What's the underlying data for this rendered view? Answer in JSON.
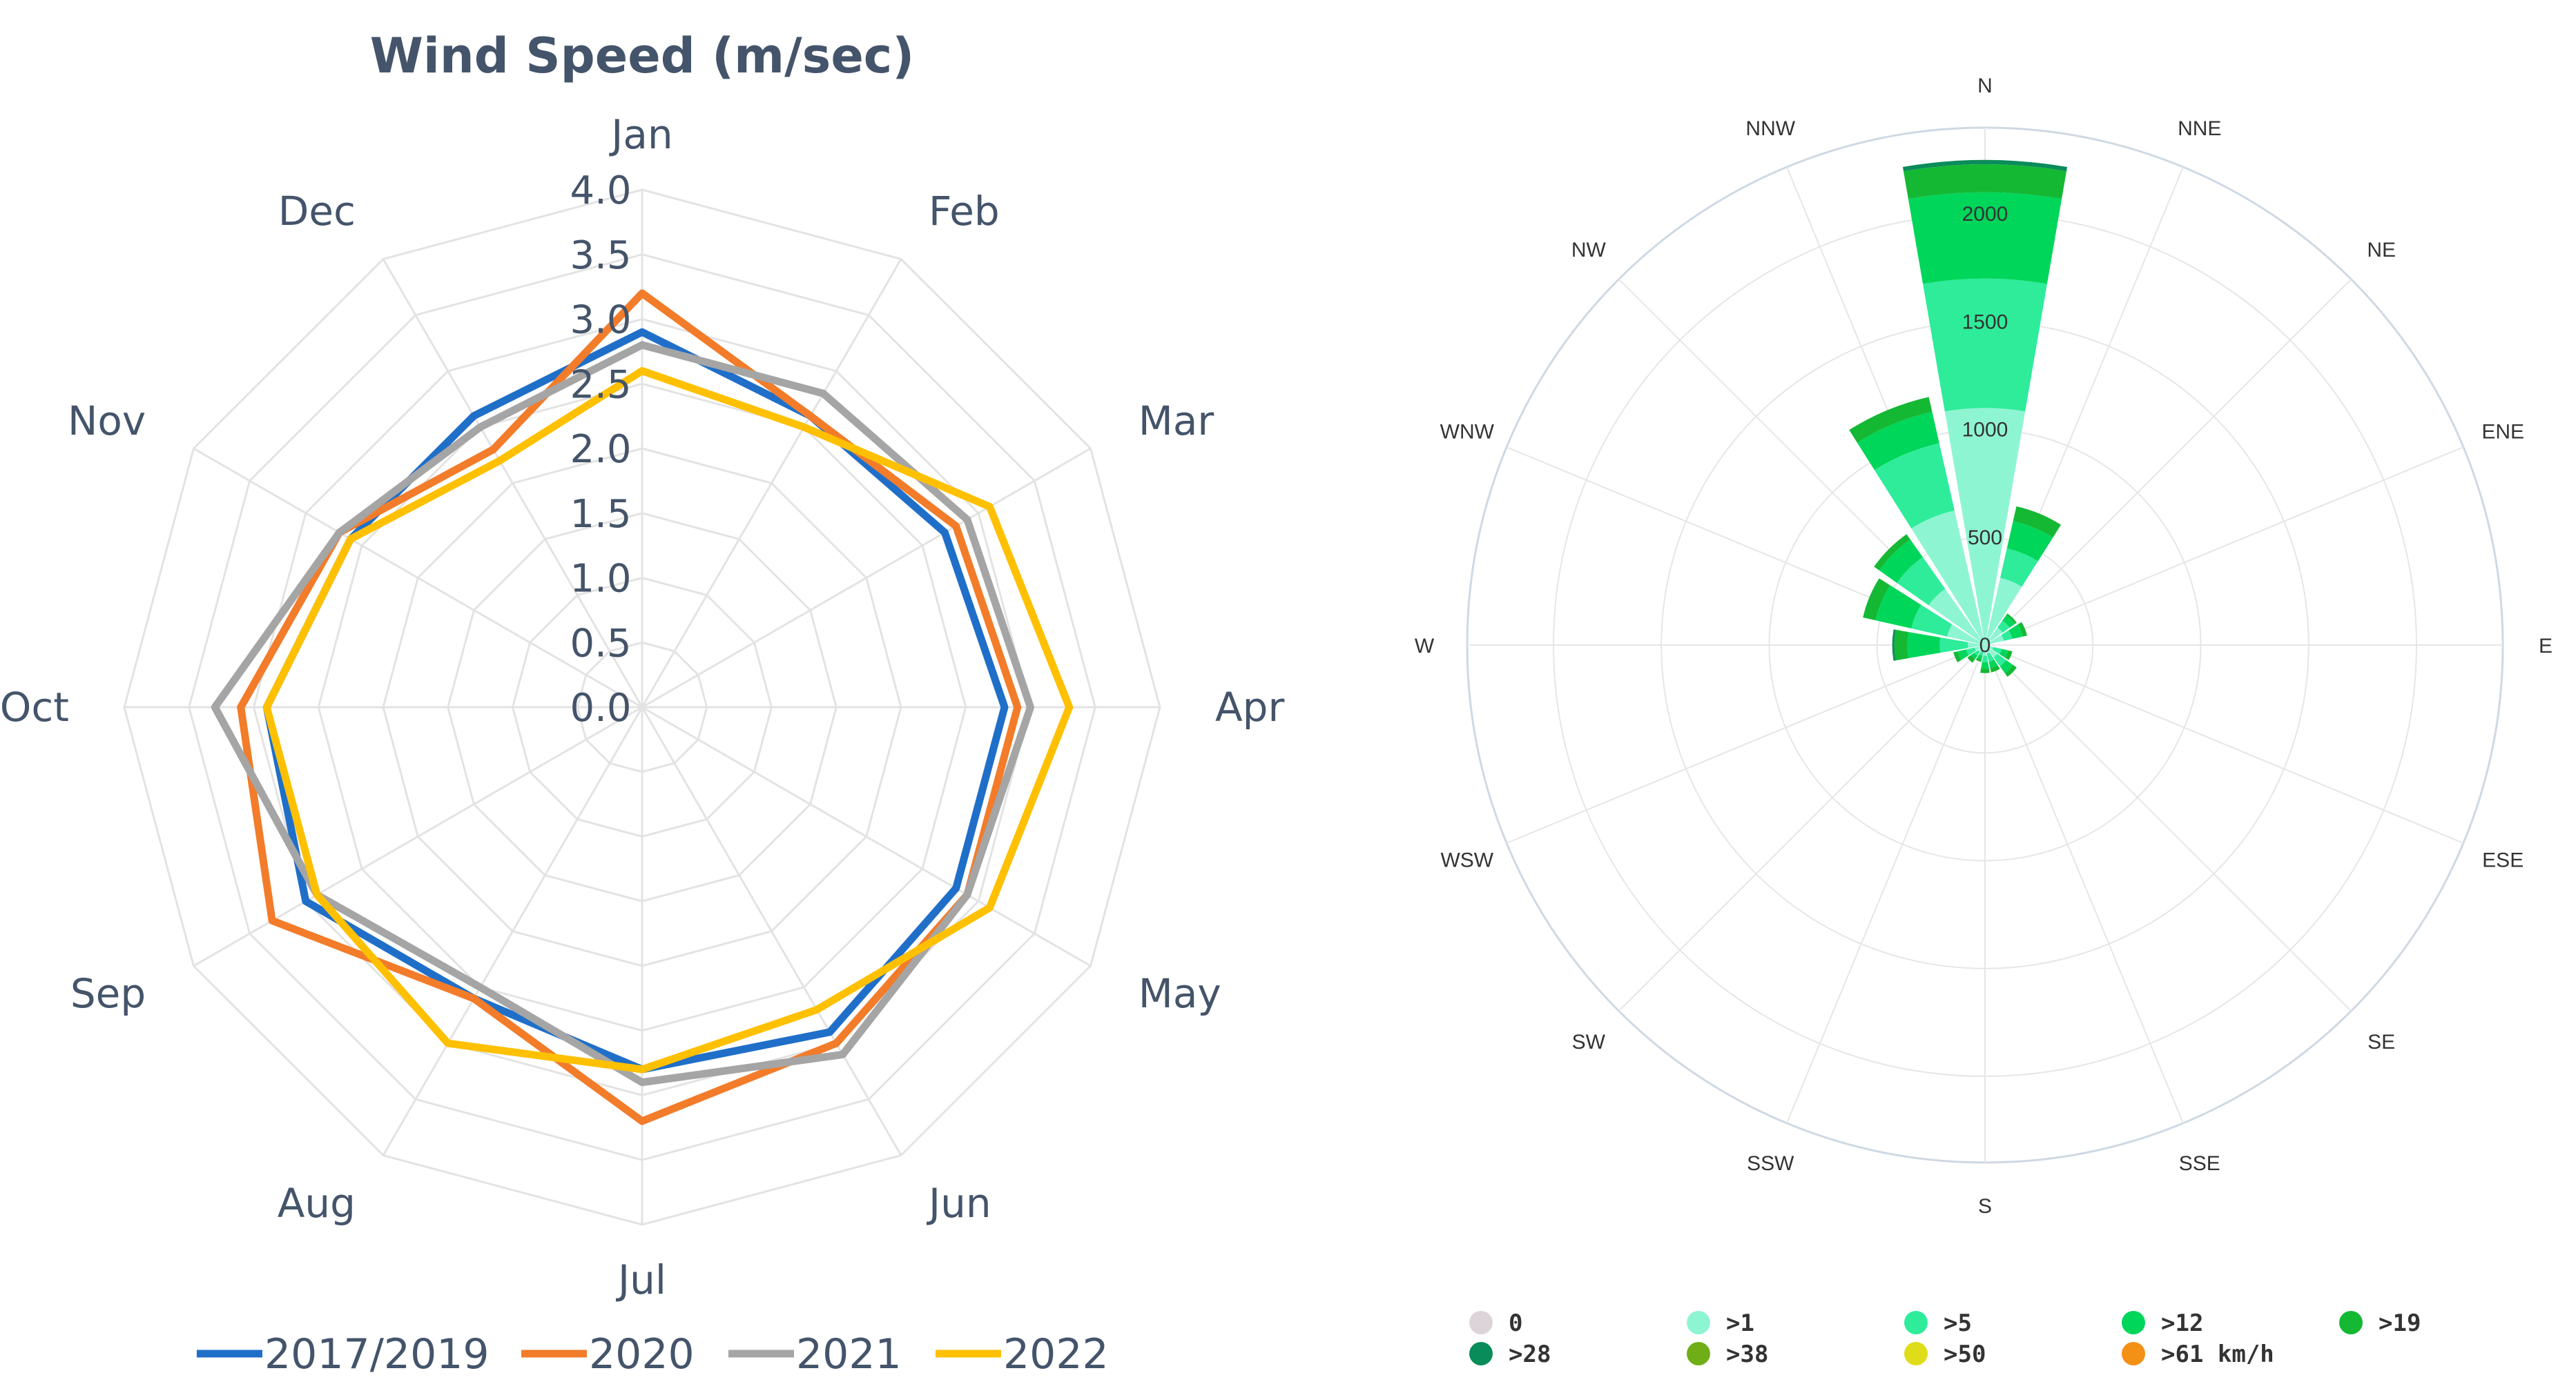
{
  "chart_data": [
    {
      "type": "radar",
      "title": "Wind Speed (m/sec)",
      "categories": [
        "Jan",
        "Feb",
        "Mar",
        "Apr",
        "May",
        "Jun",
        "Jul",
        "Aug",
        "Sep",
        "Oct",
        "Nov",
        "Dec"
      ],
      "ylim": [
        0,
        4
      ],
      "ticks": [
        "0.0",
        "0.5",
        "1.0",
        "1.5",
        "2.0",
        "2.5",
        "3.0",
        "3.5",
        "4.0"
      ],
      "grid": true,
      "legend_position": "bottom",
      "series": [
        {
          "name": "2017/2019",
          "color": "#1f6fc9",
          "values": [
            2.9,
            2.6,
            2.7,
            2.8,
            2.8,
            2.9,
            2.8,
            2.6,
            3.0,
            2.9,
            2.6,
            2.6
          ]
        },
        {
          "name": "2020",
          "color": "#f27c2a",
          "values": [
            3.2,
            2.6,
            2.8,
            2.9,
            2.9,
            3.0,
            3.2,
            2.6,
            3.3,
            3.1,
            2.7,
            2.3
          ]
        },
        {
          "name": "2021",
          "color": "#a5a5a5",
          "values": [
            2.8,
            2.8,
            2.9,
            3.0,
            2.9,
            3.1,
            2.9,
            2.5,
            2.9,
            3.3,
            2.7,
            2.5
          ]
        },
        {
          "name": "2022",
          "color": "#ffc000",
          "values": [
            2.6,
            2.5,
            3.1,
            3.3,
            3.1,
            2.7,
            2.8,
            3.0,
            2.9,
            2.9,
            2.6,
            2.2
          ]
        }
      ]
    },
    {
      "type": "wind-rose",
      "directions": [
        "N",
        "NNE",
        "NE",
        "ENE",
        "E",
        "ESE",
        "SE",
        "SSE",
        "S",
        "SSW",
        "SW",
        "WSW",
        "W",
        "WNW",
        "NW",
        "NNW"
      ],
      "rlim": [
        0,
        2400
      ],
      "ticks": [
        "0",
        "500",
        "1000",
        "1500",
        "2000"
      ],
      "tick_values": [
        0,
        500,
        1000,
        1500,
        2000
      ],
      "grid": true,
      "legend_position": "bottom",
      "speed_bins": [
        {
          "label": "0",
          "color": "#ddd4da"
        },
        {
          "label": ">1",
          "color": "#8ef5d2"
        },
        {
          "label": ">5",
          "color": "#2eec9a"
        },
        {
          "label": ">12",
          "color": "#00d65a"
        },
        {
          "label": ">19",
          "color": "#14b833"
        },
        {
          "label": ">28",
          "color": "#0a8c5a"
        },
        {
          "label": ">38",
          "color": "#6fae17"
        },
        {
          "label": ">50",
          "color": "#dfdc1a"
        },
        {
          "label": ">61 km/h",
          "color": "#f39016"
        }
      ],
      "series": [
        {
          "name": ">1",
          "values": [
            1100,
            320,
            100,
            90,
            0,
            40,
            70,
            40,
            50,
            30,
            40,
            50,
            80,
            180,
            320,
            640
          ]
        },
        {
          "name": ">5",
          "values": [
            600,
            140,
            40,
            40,
            0,
            40,
            50,
            40,
            30,
            20,
            20,
            40,
            130,
            170,
            180,
            320
          ]
        },
        {
          "name": ">12",
          "values": [
            400,
            130,
            30,
            50,
            0,
            30,
            40,
            30,
            30,
            20,
            20,
            40,
            150,
            170,
            100,
            150
          ]
        },
        {
          "name": ">19",
          "values": [
            130,
            70,
            10,
            20,
            0,
            20,
            20,
            20,
            20,
            10,
            20,
            20,
            60,
            60,
            30,
            70
          ]
        },
        {
          "name": ">28",
          "values": [
            20,
            0,
            0,
            0,
            0,
            0,
            0,
            0,
            0,
            0,
            0,
            0,
            10,
            0,
            0,
            0
          ]
        }
      ]
    }
  ]
}
